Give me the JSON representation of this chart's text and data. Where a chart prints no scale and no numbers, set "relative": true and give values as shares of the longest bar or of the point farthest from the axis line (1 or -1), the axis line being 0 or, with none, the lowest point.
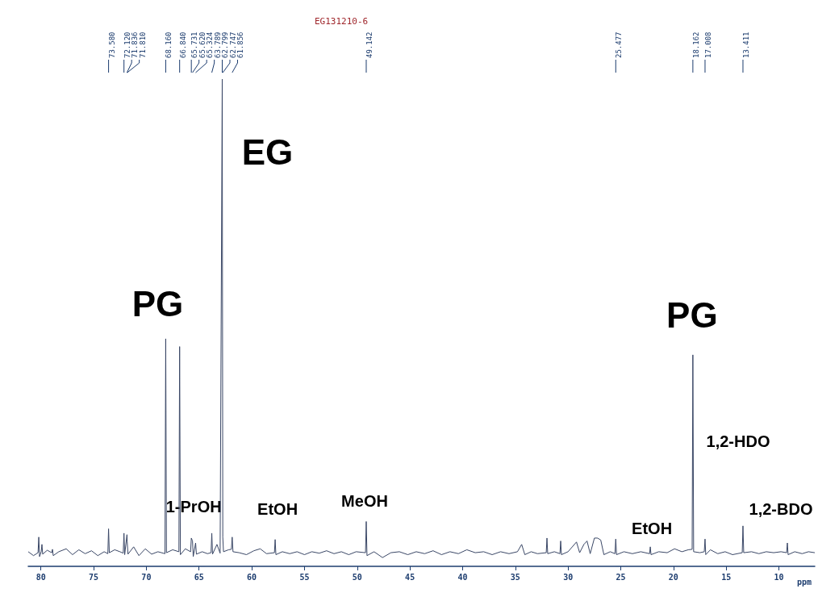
{
  "chart_data": {
    "type": "line",
    "relative": true,
    "title": "EG131210-6",
    "xlabel": "ppm",
    "marker": "none",
    "color": "#3a4766",
    "xlim": [
      81.2,
      6.6
    ],
    "xticks": [
      80,
      75,
      70,
      65,
      60,
      55,
      50,
      45,
      40,
      35,
      30,
      25,
      20,
      15,
      10
    ],
    "x": [
      81.2,
      80.7,
      80.27,
      80.2,
      80.13,
      79.97,
      79.9,
      79.83,
      79.4,
      78.97,
      78.9,
      78.83,
      78.3,
      77.6,
      77.0,
      76.4,
      75.8,
      75.2,
      74.6,
      74.0,
      73.65,
      73.58,
      73.51,
      73.0,
      72.5,
      72.19,
      72.12,
      72.05,
      71.836,
      71.81,
      71.74,
      71.2,
      70.7,
      70.1,
      69.5,
      68.9,
      68.23,
      68.16,
      68.09,
      67.5,
      66.91,
      66.84,
      66.77,
      66.3,
      65.8,
      65.731,
      65.62,
      65.55,
      65.324,
      65.25,
      64.7,
      64.2,
      63.86,
      63.789,
      63.72,
      63.3,
      63.0,
      62.799,
      62.747,
      62.68,
      62.2,
      61.93,
      61.856,
      61.78,
      61.2,
      60.5,
      59.8,
      59.2,
      58.6,
      57.85,
      57.78,
      57.71,
      57.1,
      56.4,
      55.7,
      55.0,
      54.3,
      53.6,
      52.9,
      52.2,
      51.5,
      50.8,
      50.1,
      49.21,
      49.142,
      49.07,
      48.4,
      47.6,
      46.8,
      46.0,
      45.2,
      44.4,
      43.6,
      42.8,
      42.0,
      41.2,
      40.4,
      39.6,
      38.8,
      38.0,
      37.2,
      36.4,
      35.6,
      34.8,
      34.4,
      34.1,
      33.5,
      32.9,
      32.07,
      32.0,
      31.93,
      31.3,
      30.77,
      30.7,
      30.63,
      30.0,
      29.2,
      28.9,
      28.5,
      28.2,
      27.9,
      27.5,
      27.2,
      26.9,
      26.6,
      26.0,
      25.55,
      25.477,
      25.4,
      24.7,
      23.9,
      23.1,
      22.27,
      22.2,
      22.13,
      21.4,
      20.6,
      19.9,
      19.2,
      18.6,
      18.23,
      18.162,
      18.09,
      17.5,
      17.08,
      17.008,
      16.94,
      16.5,
      15.8,
      15.1,
      14.4,
      13.48,
      13.411,
      13.34,
      12.6,
      11.9,
      11.2,
      10.5,
      9.8,
      9.27,
      9.2,
      9.13,
      8.5,
      7.8,
      7.2,
      6.6
    ],
    "values": [
      0.03,
      0.022,
      0.028,
      0.06,
      0.02,
      0.03,
      0.045,
      0.025,
      0.033,
      0.028,
      0.035,
      0.022,
      0.03,
      0.036,
      0.024,
      0.034,
      0.026,
      0.032,
      0.022,
      0.03,
      0.026,
      0.077,
      0.028,
      0.034,
      0.03,
      0.027,
      0.068,
      0.024,
      0.065,
      0.05,
      0.025,
      0.04,
      0.022,
      0.036,
      0.025,
      0.03,
      0.026,
      0.467,
      0.028,
      0.034,
      0.03,
      0.451,
      0.024,
      0.036,
      0.03,
      0.058,
      0.052,
      0.02,
      0.048,
      0.025,
      0.03,
      0.026,
      0.028,
      0.068,
      0.025,
      0.045,
      0.027,
      1.0,
      0.06,
      0.03,
      0.034,
      0.035,
      0.06,
      0.03,
      0.028,
      0.024,
      0.032,
      0.036,
      0.026,
      0.028,
      0.055,
      0.024,
      0.03,
      0.026,
      0.03,
      0.024,
      0.03,
      0.027,
      0.032,
      0.026,
      0.03,
      0.024,
      0.03,
      0.028,
      0.092,
      0.022,
      0.03,
      0.018,
      0.028,
      0.03,
      0.024,
      0.03,
      0.026,
      0.032,
      0.024,
      0.03,
      0.026,
      0.034,
      0.028,
      0.03,
      0.024,
      0.03,
      0.026,
      0.03,
      0.045,
      0.024,
      0.03,
      0.026,
      0.028,
      0.058,
      0.026,
      0.03,
      0.026,
      0.052,
      0.024,
      0.03,
      0.05,
      0.028,
      0.045,
      0.052,
      0.026,
      0.058,
      0.058,
      0.054,
      0.024,
      0.03,
      0.026,
      0.056,
      0.024,
      0.03,
      0.026,
      0.03,
      0.026,
      0.04,
      0.024,
      0.03,
      0.028,
      0.036,
      0.03,
      0.034,
      0.035,
      0.434,
      0.03,
      0.028,
      0.03,
      0.056,
      0.024,
      0.034,
      0.026,
      0.03,
      0.024,
      0.028,
      0.083,
      0.028,
      0.03,
      0.026,
      0.03,
      0.028,
      0.03,
      0.028,
      0.048,
      0.024,
      0.03,
      0.026,
      0.03,
      0.028
    ],
    "annotations": [
      {
        "text": "73.580",
        "x": 73.58
      },
      {
        "text": "72.120",
        "x": 72.12
      },
      {
        "text": "71.836",
        "x": 71.836
      },
      {
        "text": "71.810",
        "x": 71.81
      },
      {
        "text": "68.160",
        "x": 68.16
      },
      {
        "text": "66.840",
        "x": 66.84
      },
      {
        "text": "65.731",
        "x": 65.731
      },
      {
        "text": "65.620",
        "x": 65.62
      },
      {
        "text": "65.324",
        "x": 65.324
      },
      {
        "text": "63.789",
        "x": 63.789
      },
      {
        "text": "62.799",
        "x": 62.799
      },
      {
        "text": "62.747",
        "x": 62.747
      },
      {
        "text": "61.856",
        "x": 61.856
      },
      {
        "text": "49.142",
        "x": 49.142
      },
      {
        "text": "25.477",
        "x": 25.477
      },
      {
        "text": "18.162",
        "x": 18.162
      },
      {
        "text": "17.008",
        "x": 17.008
      },
      {
        "text": "13.411",
        "x": 13.411
      },
      {
        "text": "PG",
        "x": 68.16,
        "y": 0.467
      },
      {
        "text": "EG",
        "x": 62.799,
        "y": 1.0
      },
      {
        "text": "1-PrOH",
        "x": 65.731,
        "y": 0.058
      },
      {
        "text": "EtOH",
        "x": 57.78,
        "y": 0.055
      },
      {
        "text": "MeOH",
        "x": 49.142,
        "y": 0.092
      },
      {
        "text": "EtOH",
        "x": 22.2,
        "y": 0.04
      },
      {
        "text": "PG",
        "x": 18.162,
        "y": 0.434
      },
      "1,2-HDO",
      {
        "text": "1,2-BDO",
        "x": 9.2,
        "y": 0.048
      }
    ]
  }
}
